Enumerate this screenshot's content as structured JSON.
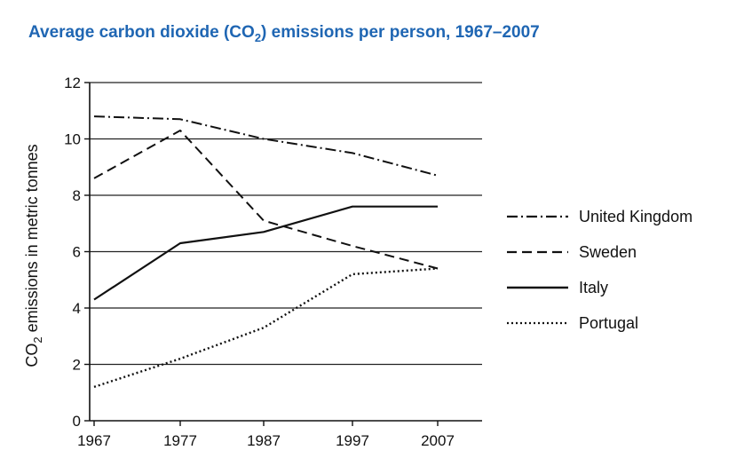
{
  "chart_data": {
    "type": "line",
    "title": {
      "prefix": "Average carbon dioxide (CO",
      "sub": "2",
      "suffix": ") emissions per person, 1967–2007"
    },
    "ylabel": {
      "prefix": "CO",
      "sub": "2",
      "suffix": " emissions in metric tonnes"
    },
    "xlabel": "",
    "categories": [
      "1967",
      "1977",
      "1987",
      "1997",
      "2007"
    ],
    "y_ticks": [
      "0",
      "2",
      "4",
      "6",
      "8",
      "10",
      "12"
    ],
    "ylim": [
      0,
      12
    ],
    "grid": "horizontal",
    "legend_position": "right",
    "series": [
      {
        "name": "United Kingdom",
        "style": "dash-dot",
        "values": [
          10.8,
          10.7,
          10.0,
          9.5,
          8.7
        ]
      },
      {
        "name": "Sweden",
        "style": "dashed",
        "values": [
          8.6,
          10.3,
          7.1,
          6.2,
          5.4
        ]
      },
      {
        "name": "Italy",
        "style": "solid",
        "values": [
          4.3,
          6.3,
          6.7,
          7.6,
          7.6
        ]
      },
      {
        "name": "Portugal",
        "style": "dotted",
        "values": [
          1.2,
          2.2,
          3.3,
          5.2,
          5.4
        ]
      }
    ],
    "colors": {
      "title": "#1f66b3",
      "line": "#111111",
      "grid": "#222222"
    }
  }
}
